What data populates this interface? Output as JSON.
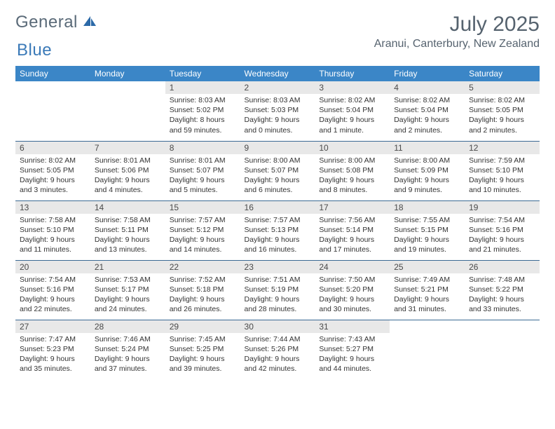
{
  "brand": {
    "part1": "General",
    "part2": "Blue"
  },
  "title": "July 2025",
  "location": "Aranui, Canterbury, New Zealand",
  "colors": {
    "header_bg": "#3b86c7",
    "header_text": "#ffffff",
    "daynum_bg": "#e8e8e8",
    "rule": "#3b6a94",
    "brand_gray": "#5a6a78",
    "brand_blue": "#3b7ab8",
    "title_color": "#56636f"
  },
  "fonts": {
    "body_size": 10.5,
    "title_size": 30,
    "location_size": 16,
    "dow_size": 12,
    "daynum_size": 12
  },
  "days_of_week": [
    "Sunday",
    "Monday",
    "Tuesday",
    "Wednesday",
    "Thursday",
    "Friday",
    "Saturday"
  ],
  "weeks": [
    [
      null,
      null,
      {
        "n": "1",
        "sunrise": "8:03 AM",
        "sunset": "5:02 PM",
        "daylight": "8 hours and 59 minutes."
      },
      {
        "n": "2",
        "sunrise": "8:03 AM",
        "sunset": "5:03 PM",
        "daylight": "9 hours and 0 minutes."
      },
      {
        "n": "3",
        "sunrise": "8:02 AM",
        "sunset": "5:04 PM",
        "daylight": "9 hours and 1 minute."
      },
      {
        "n": "4",
        "sunrise": "8:02 AM",
        "sunset": "5:04 PM",
        "daylight": "9 hours and 2 minutes."
      },
      {
        "n": "5",
        "sunrise": "8:02 AM",
        "sunset": "5:05 PM",
        "daylight": "9 hours and 2 minutes."
      }
    ],
    [
      {
        "n": "6",
        "sunrise": "8:02 AM",
        "sunset": "5:05 PM",
        "daylight": "9 hours and 3 minutes."
      },
      {
        "n": "7",
        "sunrise": "8:01 AM",
        "sunset": "5:06 PM",
        "daylight": "9 hours and 4 minutes."
      },
      {
        "n": "8",
        "sunrise": "8:01 AM",
        "sunset": "5:07 PM",
        "daylight": "9 hours and 5 minutes."
      },
      {
        "n": "9",
        "sunrise": "8:00 AM",
        "sunset": "5:07 PM",
        "daylight": "9 hours and 6 minutes."
      },
      {
        "n": "10",
        "sunrise": "8:00 AM",
        "sunset": "5:08 PM",
        "daylight": "9 hours and 8 minutes."
      },
      {
        "n": "11",
        "sunrise": "8:00 AM",
        "sunset": "5:09 PM",
        "daylight": "9 hours and 9 minutes."
      },
      {
        "n": "12",
        "sunrise": "7:59 AM",
        "sunset": "5:10 PM",
        "daylight": "9 hours and 10 minutes."
      }
    ],
    [
      {
        "n": "13",
        "sunrise": "7:58 AM",
        "sunset": "5:10 PM",
        "daylight": "9 hours and 11 minutes."
      },
      {
        "n": "14",
        "sunrise": "7:58 AM",
        "sunset": "5:11 PM",
        "daylight": "9 hours and 13 minutes."
      },
      {
        "n": "15",
        "sunrise": "7:57 AM",
        "sunset": "5:12 PM",
        "daylight": "9 hours and 14 minutes."
      },
      {
        "n": "16",
        "sunrise": "7:57 AM",
        "sunset": "5:13 PM",
        "daylight": "9 hours and 16 minutes."
      },
      {
        "n": "17",
        "sunrise": "7:56 AM",
        "sunset": "5:14 PM",
        "daylight": "9 hours and 17 minutes."
      },
      {
        "n": "18",
        "sunrise": "7:55 AM",
        "sunset": "5:15 PM",
        "daylight": "9 hours and 19 minutes."
      },
      {
        "n": "19",
        "sunrise": "7:54 AM",
        "sunset": "5:16 PM",
        "daylight": "9 hours and 21 minutes."
      }
    ],
    [
      {
        "n": "20",
        "sunrise": "7:54 AM",
        "sunset": "5:16 PM",
        "daylight": "9 hours and 22 minutes."
      },
      {
        "n": "21",
        "sunrise": "7:53 AM",
        "sunset": "5:17 PM",
        "daylight": "9 hours and 24 minutes."
      },
      {
        "n": "22",
        "sunrise": "7:52 AM",
        "sunset": "5:18 PM",
        "daylight": "9 hours and 26 minutes."
      },
      {
        "n": "23",
        "sunrise": "7:51 AM",
        "sunset": "5:19 PM",
        "daylight": "9 hours and 28 minutes."
      },
      {
        "n": "24",
        "sunrise": "7:50 AM",
        "sunset": "5:20 PM",
        "daylight": "9 hours and 30 minutes."
      },
      {
        "n": "25",
        "sunrise": "7:49 AM",
        "sunset": "5:21 PM",
        "daylight": "9 hours and 31 minutes."
      },
      {
        "n": "26",
        "sunrise": "7:48 AM",
        "sunset": "5:22 PM",
        "daylight": "9 hours and 33 minutes."
      }
    ],
    [
      {
        "n": "27",
        "sunrise": "7:47 AM",
        "sunset": "5:23 PM",
        "daylight": "9 hours and 35 minutes."
      },
      {
        "n": "28",
        "sunrise": "7:46 AM",
        "sunset": "5:24 PM",
        "daylight": "9 hours and 37 minutes."
      },
      {
        "n": "29",
        "sunrise": "7:45 AM",
        "sunset": "5:25 PM",
        "daylight": "9 hours and 39 minutes."
      },
      {
        "n": "30",
        "sunrise": "7:44 AM",
        "sunset": "5:26 PM",
        "daylight": "9 hours and 42 minutes."
      },
      {
        "n": "31",
        "sunrise": "7:43 AM",
        "sunset": "5:27 PM",
        "daylight": "9 hours and 44 minutes."
      },
      null,
      null
    ]
  ],
  "labels": {
    "sunrise": "Sunrise:",
    "sunset": "Sunset:",
    "daylight": "Daylight:"
  }
}
